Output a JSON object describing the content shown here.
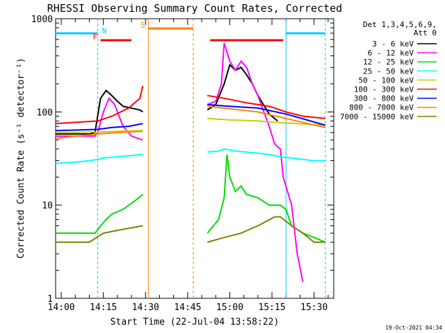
{
  "chart_data": {
    "type": "line",
    "title": "RHESSI Observing Summary Count Rates, Corrected",
    "xlabel": "Start Time (22-Jul-04 13:58:22)",
    "ylabel": "Corrected Count Rate (s⁻¹ detector⁻¹)",
    "y_scale": "log",
    "xlim": [
      "13:58",
      "15:37"
    ],
    "ylim": [
      1,
      1000
    ],
    "x_ticks": [
      "14:00",
      "14:15",
      "14:30",
      "14:45",
      "15:00",
      "15:15",
      "15:30"
    ],
    "y_ticks": [
      {
        "value": 1,
        "label": "1"
      },
      {
        "value": 10,
        "label": "10"
      },
      {
        "value": 100,
        "label": "100"
      },
      {
        "value": 1000,
        "label": "1000"
      }
    ],
    "legend_header": [
      "Det 1,3,4,5,6,9,",
      "Att 0"
    ],
    "legend_position": "right",
    "grid": false,
    "footer": "19-Oct-2021 04:34",
    "series": [
      {
        "name": "3 - 6 keV",
        "color": "#000000",
        "x": [
          "13:58",
          "14:10",
          "14:12",
          "14:14",
          "14:16",
          "14:18",
          "14:20",
          "14:22",
          "14:25",
          "14:28",
          "14:29",
          "14:52",
          "14:55",
          "14:58",
          "15:00",
          "15:02",
          "15:04",
          "15:06",
          "15:08",
          "15:10",
          "15:14",
          "15:17"
        ],
        "y": [
          58,
          58,
          60,
          140,
          170,
          150,
          130,
          115,
          110,
          105,
          100,
          105,
          120,
          200,
          320,
          280,
          300,
          250,
          200,
          150,
          95,
          80
        ]
      },
      {
        "name": "6 - 12 keV",
        "color": "#ff00ff",
        "x": [
          "13:58",
          "14:12",
          "14:13",
          "14:15",
          "14:17",
          "14:19",
          "14:22",
          "14:25",
          "14:29",
          "14:52",
          "14:55",
          "14:57",
          "14:58",
          "15:00",
          "15:02",
          "15:04",
          "15:06",
          "15:08",
          "15:10",
          "15:14",
          "15:16",
          "15:18",
          "15:19",
          "15:22",
          "15:24",
          "15:26"
        ],
        "y": [
          55,
          55,
          60,
          100,
          140,
          120,
          70,
          55,
          50,
          120,
          130,
          200,
          550,
          350,
          280,
          350,
          300,
          200,
          150,
          70,
          45,
          40,
          20,
          10,
          3,
          1.5
        ]
      },
      {
        "name": "12 - 25 keV",
        "color": "#00dd00",
        "x": [
          "13:58",
          "14:12",
          "14:14",
          "14:16",
          "14:18",
          "14:22",
          "14:26",
          "14:29",
          "14:52",
          "14:56",
          "14:58",
          "14:59",
          "15:00",
          "15:02",
          "15:04",
          "15:06",
          "15:10",
          "15:14",
          "15:18",
          "15:20",
          "15:22",
          "15:26",
          "15:30",
          "15:34"
        ],
        "y": [
          5,
          5,
          6,
          7,
          8,
          9,
          11,
          13,
          5,
          7,
          12,
          35,
          20,
          14,
          16,
          13,
          12,
          10,
          10,
          9,
          6,
          5,
          4.5,
          4
        ]
      },
      {
        "name": "25 - 50 keV",
        "color": "#00ffff",
        "x": [
          "13:58",
          "14:05",
          "14:10",
          "14:13",
          "14:15",
          "14:20",
          "14:25",
          "14:29",
          "14:52",
          "14:56",
          "14:58",
          "15:02",
          "15:06",
          "15:10",
          "15:14",
          "15:18",
          "15:22",
          "15:26",
          "15:30",
          "15:34"
        ],
        "y": [
          28,
          29,
          30,
          31,
          32,
          33,
          34,
          35,
          37,
          38,
          40,
          38,
          37,
          36,
          35,
          33,
          32,
          31,
          30,
          30
        ]
      },
      {
        "name": "50 - 100 keV",
        "color": "#cccc00",
        "x": [
          "13:58",
          "14:13",
          "14:20",
          "14:29",
          "14:52",
          "15:00",
          "15:10",
          "15:20",
          "15:34"
        ],
        "y": [
          60,
          61,
          62,
          63,
          85,
          82,
          80,
          76,
          72
        ]
      },
      {
        "name": "100 - 300 keV",
        "color": "#ff0000",
        "x": [
          "13:58",
          "14:13",
          "14:18",
          "14:24",
          "14:28",
          "14:29",
          "14:52",
          "14:58",
          "15:06",
          "15:14",
          "15:20",
          "15:26",
          "15:34"
        ],
        "y": [
          75,
          80,
          90,
          110,
          140,
          190,
          150,
          140,
          125,
          115,
          100,
          90,
          85
        ]
      },
      {
        "name": "300 - 800 keV",
        "color": "#0000ff",
        "x": [
          "13:58",
          "14:13",
          "14:18",
          "14:24",
          "14:29",
          "14:52",
          "15:00",
          "15:10",
          "15:20",
          "15:34"
        ],
        "y": [
          63,
          65,
          68,
          70,
          75,
          120,
          115,
          110,
          95,
          72
        ]
      },
      {
        "name": "800 - 7000 keV",
        "color": "#ff8000",
        "x": [
          "13:58",
          "14:13",
          "14:20",
          "14:29",
          "14:52",
          "15:00",
          "15:10",
          "15:20",
          "15:34"
        ],
        "y": [
          52,
          58,
          60,
          62,
          115,
          108,
          100,
          85,
          68
        ]
      },
      {
        "name": "7000 - 15000 keV",
        "color": "#808000",
        "x": [
          "13:58",
          "14:10",
          "14:15",
          "14:22",
          "14:29",
          "14:52",
          "14:58",
          "15:04",
          "15:10",
          "15:16",
          "15:18",
          "15:22",
          "15:26",
          "15:30",
          "15:34"
        ],
        "y": [
          4,
          4,
          5,
          5.5,
          6,
          4,
          4.5,
          5,
          6,
          7.5,
          7.5,
          6,
          5,
          4,
          4
        ]
      }
    ],
    "annotations": [
      {
        "label": "N",
        "color": "#00ccff",
        "x_start": "13:58",
        "x_end": "14:13"
      },
      {
        "label": "",
        "color": "#00ccff",
        "x_start": "15:20",
        "x_end": "15:34"
      },
      {
        "label": "F",
        "color": "#ff0000",
        "x_start": "14:14",
        "x_end": "14:25"
      },
      {
        "label": "",
        "color": "#ff0000",
        "x_start": "14:53",
        "x_end": "15:19"
      },
      {
        "label": "S",
        "color": "#ff8000",
        "x_start": "14:31",
        "x_end": "14:47"
      }
    ]
  }
}
